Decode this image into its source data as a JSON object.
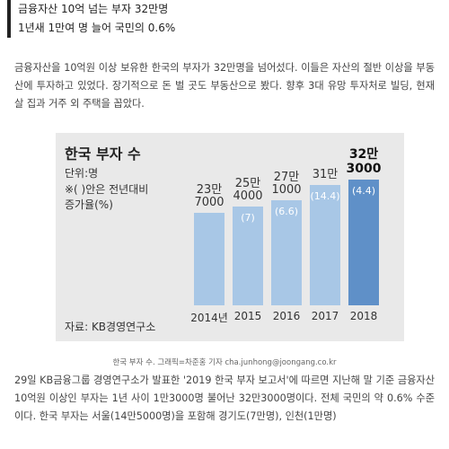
{
  "header": {
    "lines": [
      "금융자산 10억 넘는 부자 32만명",
      "1년새 1만여 명 늘어 국민의 0.6%"
    ]
  },
  "paragraphs": [
    "금융자산을 10억원 이상 보유한 한국의 부자가 32만명을 넘어섰다. 이들은 자산의 절반 이상을 부동산에 투자하고 있었다. 장기적으로 돈 벌 곳도 부동산으로 봤다. 향후 3대 유망 투자처로 빌딩, 현재 살 집과 거주 외 주택을 꼽았다.",
    "29일 KB금융그룹 경영연구소가 발표한 '2019 한국 부자 보고서'에 따르면 지난해 말 기준 금융자산 10억원 이상인 부자는 1년 사이 1만3000명 불어난 32만3000명이다. 전체 국민의 약 0.6% 수준이다. 한국 부자는 서울(14만5000명)을 포함해 경기도(7만명), 인천(1만명)"
  ],
  "chart_data": {
    "type": "bar",
    "title": "한국 부자 수",
    "subtitle": "단위:명",
    "note": "※( )안은 전년대비\n증가율(%)",
    "source": "자료: KB경영연구소",
    "categories": [
      "2014년",
      "2015",
      "2016",
      "2017",
      "2018"
    ],
    "values": [
      237000,
      254000,
      271000,
      310000,
      323000
    ],
    "value_labels": [
      "23만\n7000",
      "25만\n4000",
      "27만\n1000",
      "31만",
      "32만\n3000"
    ],
    "growth": [
      null,
      7,
      6.6,
      14.4,
      4.4
    ],
    "growth_labels": [
      null,
      "(7)",
      "(6.6)",
      "(14.4)",
      "(4.4)"
    ],
    "colors": [
      "#a8c7e6",
      "#a8c7e6",
      "#a8c7e6",
      "#a8c7e6",
      "#5f90c8"
    ]
  },
  "caption": "한국 부자 수. 그래픽=차준홍 기자 cha.junhong@joongang.co.kr"
}
